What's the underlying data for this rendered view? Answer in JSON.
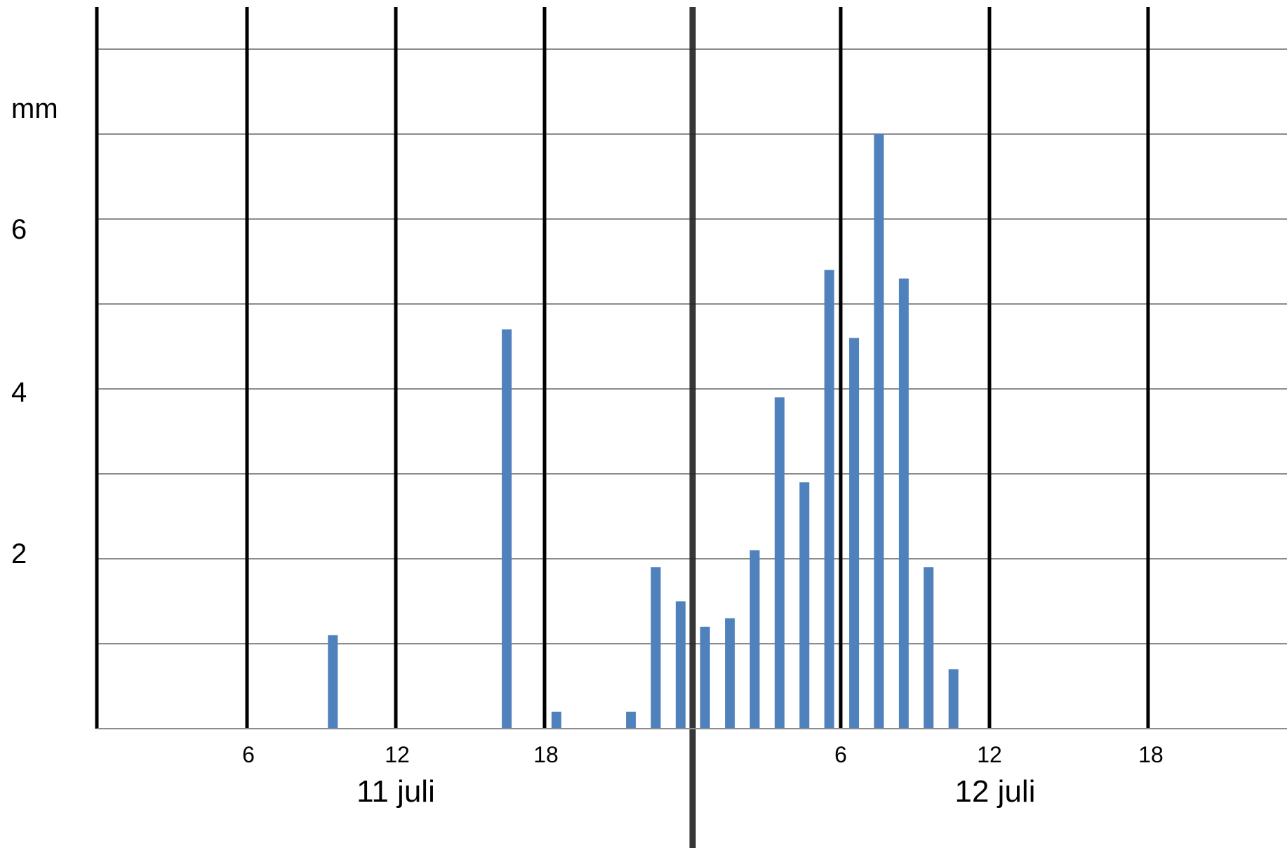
{
  "chart_data": {
    "type": "bar",
    "ylabel": "mm",
    "ylim": [
      0,
      8.5
    ],
    "y_ticks": [
      "2",
      "4",
      "6"
    ],
    "x_ticks": [
      "6",
      "12",
      "18",
      "6",
      "12",
      "18"
    ],
    "days": [
      "11 juli",
      "12 juli"
    ],
    "grid": true,
    "bar_color": "#4f81bd",
    "series": [
      {
        "values": [
          {
            "day": 0,
            "hour": 9.5,
            "value": 1.1
          },
          {
            "day": 0,
            "hour": 16.5,
            "value": 4.7
          },
          {
            "day": 0,
            "hour": 18.5,
            "value": 0.2
          },
          {
            "day": 0,
            "hour": 21.5,
            "value": 0.2
          },
          {
            "day": 0,
            "hour": 22.5,
            "value": 1.9
          },
          {
            "day": 0,
            "hour": 23.5,
            "value": 1.5
          },
          {
            "day": 1,
            "hour": 0.5,
            "value": 1.2
          },
          {
            "day": 1,
            "hour": 1.5,
            "value": 1.3
          },
          {
            "day": 1,
            "hour": 2.5,
            "value": 2.1
          },
          {
            "day": 1,
            "hour": 3.5,
            "value": 3.9
          },
          {
            "day": 1,
            "hour": 4.5,
            "value": 2.9
          },
          {
            "day": 1,
            "hour": 5.5,
            "value": 5.4
          },
          {
            "day": 1,
            "hour": 6.5,
            "value": 4.6
          },
          {
            "day": 1,
            "hour": 7.5,
            "value": 7.0
          },
          {
            "day": 1,
            "hour": 8.5,
            "value": 5.3
          },
          {
            "day": 1,
            "hour": 9.5,
            "value": 1.9
          },
          {
            "day": 1,
            "hour": 10.5,
            "value": 0.7
          }
        ]
      }
    ]
  }
}
